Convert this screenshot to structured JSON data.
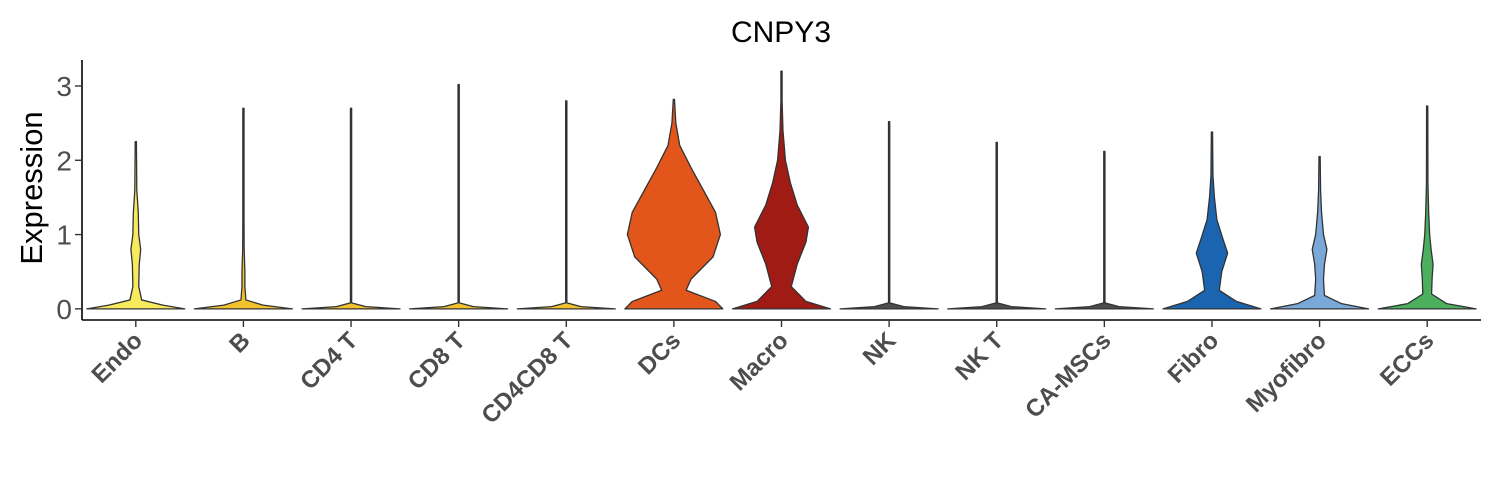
{
  "chart_data": {
    "type": "violin",
    "title": "CNPY3",
    "ylabel": "Expression",
    "xlabel": "",
    "ylim": [
      -0.15,
      3.35
    ],
    "yticks": [
      0,
      1,
      2,
      3
    ],
    "grid": false,
    "legend": "none",
    "categories": [
      "Endo",
      "B",
      "CD4 T",
      "CD8 T",
      "CD4CD8 T",
      "DCs",
      "Macro",
      "NK",
      "NK T",
      "CA-MSCs",
      "Fibro",
      "Myofibro",
      "ECCs"
    ],
    "colors": [
      "#f7ea5c",
      "#f2c12e",
      "#f2c12e",
      "#f2c12e",
      "#f2c12e",
      "#e2561b",
      "#a01b14",
      "#4d4d4d",
      "#4d4d4d",
      "#4d4d4d",
      "#1b64b0",
      "#7aa8d8",
      "#4caf5d"
    ],
    "max_values": [
      2.25,
      2.7,
      2.7,
      3.02,
      2.8,
      2.82,
      3.2,
      2.52,
      2.24,
      2.12,
      2.38,
      2.05,
      2.73
    ],
    "density_profiles": [
      [
        [
          0,
          1.0
        ],
        [
          0.05,
          0.55
        ],
        [
          0.12,
          0.12
        ],
        [
          0.3,
          0.06
        ],
        [
          0.6,
          0.07
        ],
        [
          0.8,
          0.1
        ],
        [
          1.0,
          0.06
        ],
        [
          1.3,
          0.05
        ],
        [
          1.6,
          0.02
        ],
        [
          2.25,
          0.003
        ]
      ],
      [
        [
          0,
          1.0
        ],
        [
          0.05,
          0.4
        ],
        [
          0.12,
          0.05
        ],
        [
          0.3,
          0.03
        ],
        [
          0.5,
          0.03
        ],
        [
          0.8,
          0.015
        ],
        [
          1.2,
          0.006
        ],
        [
          2.7,
          0.002
        ]
      ],
      [
        [
          0,
          1.0
        ],
        [
          0.03,
          0.3
        ],
        [
          0.08,
          0.01
        ],
        [
          2.7,
          0.002
        ]
      ],
      [
        [
          0,
          1.0
        ],
        [
          0.03,
          0.3
        ],
        [
          0.08,
          0.01
        ],
        [
          3.02,
          0.002
        ]
      ],
      [
        [
          0,
          1.0
        ],
        [
          0.03,
          0.3
        ],
        [
          0.08,
          0.01
        ],
        [
          2.8,
          0.002
        ]
      ],
      [
        [
          0,
          1.0
        ],
        [
          0.1,
          0.85
        ],
        [
          0.25,
          0.25
        ],
        [
          0.4,
          0.35
        ],
        [
          0.7,
          0.8
        ],
        [
          1.0,
          0.95
        ],
        [
          1.3,
          0.85
        ],
        [
          1.6,
          0.6
        ],
        [
          1.9,
          0.35
        ],
        [
          2.2,
          0.12
        ],
        [
          2.5,
          0.04
        ],
        [
          2.82,
          0.005
        ]
      ],
      [
        [
          0,
          1.0
        ],
        [
          0.1,
          0.5
        ],
        [
          0.3,
          0.2
        ],
        [
          0.6,
          0.32
        ],
        [
          0.9,
          0.5
        ],
        [
          1.1,
          0.55
        ],
        [
          1.4,
          0.32
        ],
        [
          1.7,
          0.18
        ],
        [
          2.0,
          0.08
        ],
        [
          2.4,
          0.03
        ],
        [
          2.8,
          0.01
        ],
        [
          3.2,
          0.003
        ]
      ],
      [
        [
          0,
          1.0
        ],
        [
          0.03,
          0.3
        ],
        [
          0.08,
          0.01
        ],
        [
          2.52,
          0.002
        ]
      ],
      [
        [
          0,
          1.0
        ],
        [
          0.03,
          0.3
        ],
        [
          0.08,
          0.01
        ],
        [
          1.65,
          0.004
        ],
        [
          2.24,
          0.002
        ]
      ],
      [
        [
          0,
          1.0
        ],
        [
          0.03,
          0.3
        ],
        [
          0.08,
          0.01
        ],
        [
          2.12,
          0.002
        ]
      ],
      [
        [
          0,
          1.0
        ],
        [
          0.1,
          0.5
        ],
        [
          0.25,
          0.15
        ],
        [
          0.5,
          0.2
        ],
        [
          0.75,
          0.32
        ],
        [
          0.95,
          0.22
        ],
        [
          1.2,
          0.1
        ],
        [
          1.5,
          0.05
        ],
        [
          1.8,
          0.02
        ],
        [
          2.38,
          0.003
        ]
      ],
      [
        [
          0,
          1.0
        ],
        [
          0.07,
          0.45
        ],
        [
          0.18,
          0.1
        ],
        [
          0.4,
          0.08
        ],
        [
          0.6,
          0.1
        ],
        [
          0.8,
          0.15
        ],
        [
          1.0,
          0.08
        ],
        [
          1.3,
          0.04
        ],
        [
          1.6,
          0.02
        ],
        [
          2.05,
          0.003
        ]
      ],
      [
        [
          0,
          1.0
        ],
        [
          0.07,
          0.4
        ],
        [
          0.2,
          0.09
        ],
        [
          0.4,
          0.1
        ],
        [
          0.6,
          0.12
        ],
        [
          0.8,
          0.08
        ],
        [
          1.0,
          0.05
        ],
        [
          1.3,
          0.03
        ],
        [
          1.7,
          0.015
        ],
        [
          2.73,
          0.002
        ]
      ]
    ]
  }
}
